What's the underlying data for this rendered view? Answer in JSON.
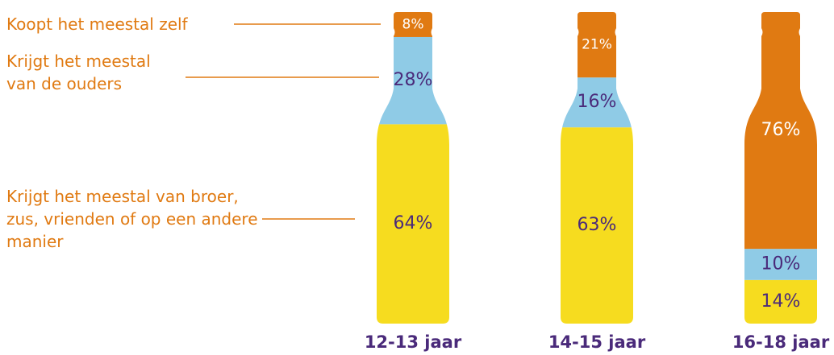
{
  "chart_data": {
    "type": "bar",
    "stacked": true,
    "categories": [
      "12-13 jaar",
      "14-15 jaar",
      "16-18 jaar"
    ],
    "ylim": [
      0,
      100
    ],
    "series": [
      {
        "name": "Krijgt het meestal van broer, zus, vrienden of op een andere manier",
        "color": "#f6dc1f",
        "values": [
          64,
          63,
          14
        ],
        "value_labels": [
          "64%",
          "63%",
          "14%"
        ]
      },
      {
        "name": "Krijgt het meestal van de ouders",
        "color": "#8fcbe6",
        "values": [
          28,
          16,
          10
        ],
        "value_labels": [
          "28%",
          "16%",
          "10%"
        ]
      },
      {
        "name": "Koopt het meestal zelf",
        "color": "#e07a12",
        "values": [
          8,
          21,
          76
        ],
        "value_labels": [
          "8%",
          "21%",
          "76%"
        ]
      }
    ]
  }
}
